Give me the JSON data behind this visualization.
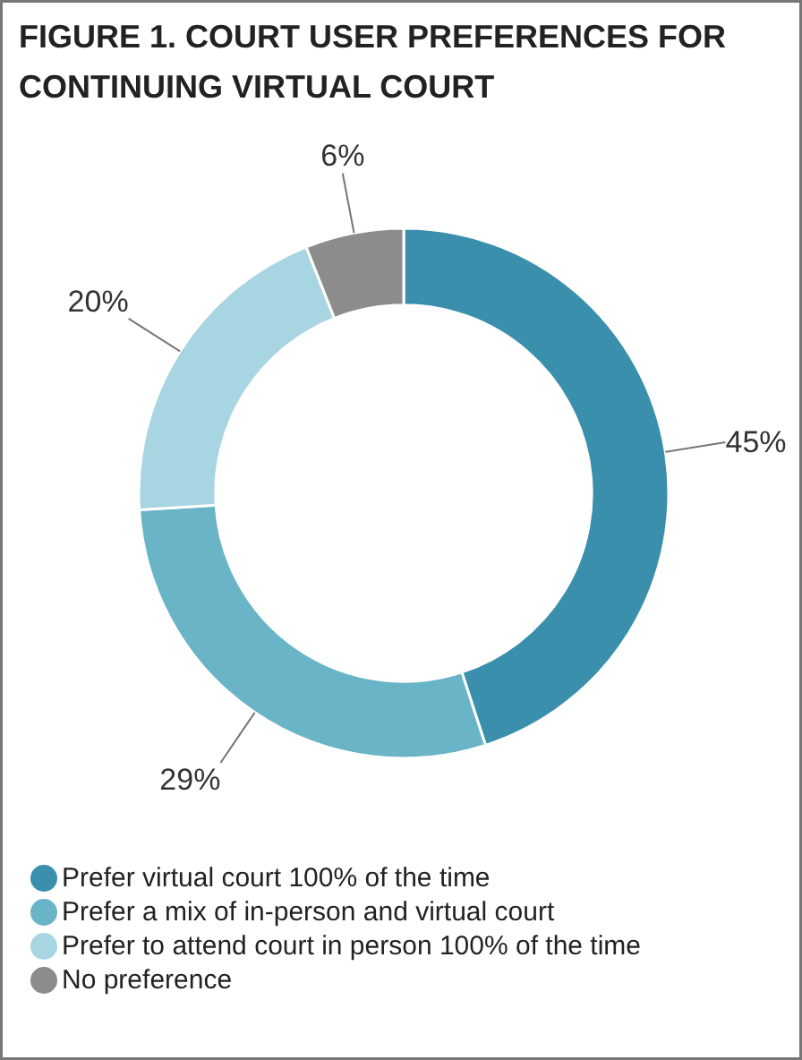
{
  "chart_data": {
    "type": "donut",
    "title": "FIGURE 1. COURT USER PREFERENCES FOR CONTINUING VIRTUAL COURT",
    "categories": [
      "Prefer virtual court 100% of the time",
      "Prefer a mix of in-person and virtual court",
      "Prefer to attend court in person 100% of the time",
      "No preference"
    ],
    "values": [
      45,
      29,
      20,
      6
    ],
    "colors": [
      "#3a8fac",
      "#6ab4c8",
      "#a8d5e2",
      "#8c8c8c"
    ],
    "value_labels": [
      "45%",
      "29%",
      "20%",
      "6%"
    ],
    "legend": "bottom left"
  }
}
